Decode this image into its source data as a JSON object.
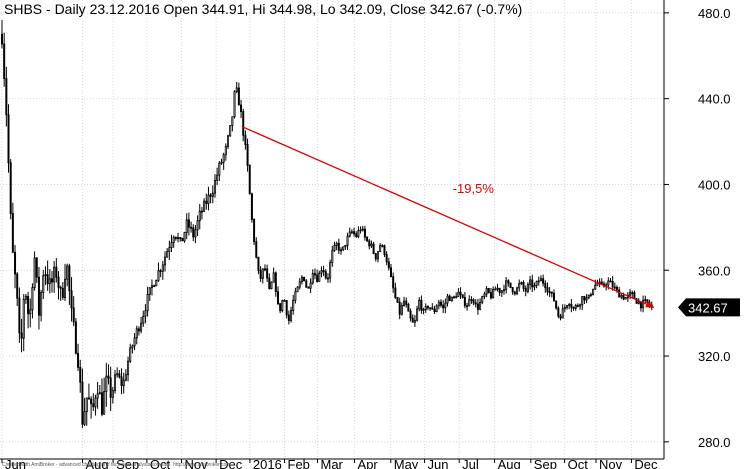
{
  "chart_data": {
    "type": "candlestick",
    "title": "SHBS - Daily 23.12.2016 Open 344.91, Hi 344.98, Lo 342.09, Close 342.67 (-0.7%)",
    "ylim": [
      272,
      486
    ],
    "yticks": [
      280,
      320,
      360,
      400,
      440,
      480
    ],
    "ytick_labels": [
      "280.0",
      "320.0",
      "360.0",
      "400.0",
      "440.0",
      "480.0"
    ],
    "x_range": [
      0,
      82
    ],
    "month_labels": [
      {
        "label": "Jun",
        "x": 0.0
      },
      {
        "label": "Aug",
        "x": 10.0
      },
      {
        "label": "Sep",
        "x": 13.8
      },
      {
        "label": "Oct",
        "x": 18.0
      },
      {
        "label": "Nov",
        "x": 22.3
      },
      {
        "label": "Dec",
        "x": 26.6
      },
      {
        "label": "2016",
        "x": 30.8
      },
      {
        "label": "Feb",
        "x": 35.1
      },
      {
        "label": "Mar",
        "x": 39.2
      },
      {
        "label": "Apr",
        "x": 43.8
      },
      {
        "label": "May",
        "x": 48.3
      },
      {
        "label": "Jun",
        "x": 52.5
      },
      {
        "label": "Jul",
        "x": 56.8
      },
      {
        "label": "Aug",
        "x": 61.2
      },
      {
        "label": "Sep",
        "x": 65.7
      },
      {
        "label": "Oct",
        "x": 69.9
      },
      {
        "label": "Nov",
        "x": 73.8
      },
      {
        "label": "Dec",
        "x": 78.2
      }
    ],
    "price_path": [
      [
        0.0,
        470
      ],
      [
        0.6,
        430
      ],
      [
        1.2,
        372
      ],
      [
        1.8,
        350
      ],
      [
        2.3,
        318
      ],
      [
        2.8,
        355
      ],
      [
        3.4,
        335
      ],
      [
        4.0,
        368
      ],
      [
        4.6,
        340
      ],
      [
        5.2,
        362
      ],
      [
        6.0,
        352
      ],
      [
        6.7,
        360
      ],
      [
        7.4,
        346
      ],
      [
        8.0,
        365
      ],
      [
        8.6,
        340
      ],
      [
        9.0,
        330
      ],
      [
        9.5,
        318
      ],
      [
        10.0,
        290
      ],
      [
        10.6,
        302
      ],
      [
        11.2,
        292
      ],
      [
        11.8,
        308
      ],
      [
        12.4,
        296
      ],
      [
        13.0,
        308
      ],
      [
        13.6,
        302
      ],
      [
        14.2,
        312
      ],
      [
        15.0,
        306
      ],
      [
        15.8,
        320
      ],
      [
        16.6,
        330
      ],
      [
        17.4,
        338
      ],
      [
        18.2,
        348
      ],
      [
        19.0,
        356
      ],
      [
        19.8,
        362
      ],
      [
        20.6,
        370
      ],
      [
        21.4,
        378
      ],
      [
        22.2,
        372
      ],
      [
        23.0,
        382
      ],
      [
        23.8,
        376
      ],
      [
        24.6,
        386
      ],
      [
        25.4,
        392
      ],
      [
        26.2,
        398
      ],
      [
        27.0,
        408
      ],
      [
        27.8,
        416
      ],
      [
        28.5,
        428
      ],
      [
        29.0,
        445
      ],
      [
        29.5,
        438
      ],
      [
        30.0,
        424
      ],
      [
        30.5,
        408
      ],
      [
        31.0,
        385
      ],
      [
        31.5,
        368
      ],
      [
        32.0,
        355
      ],
      [
        32.6,
        362
      ],
      [
        33.2,
        350
      ],
      [
        33.8,
        358
      ],
      [
        34.4,
        340
      ],
      [
        35.0,
        348
      ],
      [
        35.6,
        336
      ],
      [
        36.2,
        346
      ],
      [
        36.8,
        352
      ],
      [
        37.4,
        358
      ],
      [
        38.0,
        350
      ],
      [
        38.6,
        360
      ],
      [
        39.2,
        356
      ],
      [
        39.8,
        362
      ],
      [
        40.4,
        355
      ],
      [
        41.0,
        368
      ],
      [
        41.6,
        372
      ],
      [
        42.2,
        368
      ],
      [
        42.8,
        374
      ],
      [
        43.4,
        378
      ],
      [
        44.0,
        376
      ],
      [
        44.6,
        380
      ],
      [
        45.2,
        374
      ],
      [
        45.8,
        372
      ],
      [
        46.4,
        366
      ],
      [
        47.0,
        372
      ],
      [
        47.6,
        368
      ],
      [
        48.2,
        358
      ],
      [
        48.8,
        348
      ],
      [
        49.4,
        340
      ],
      [
        50.0,
        346
      ],
      [
        50.6,
        338
      ],
      [
        51.2,
        334
      ],
      [
        51.8,
        346
      ],
      [
        52.4,
        340
      ],
      [
        53.0,
        344
      ],
      [
        53.6,
        340
      ],
      [
        54.2,
        346
      ],
      [
        54.8,
        342
      ],
      [
        55.4,
        348
      ],
      [
        56.0,
        346
      ],
      [
        56.6,
        350
      ],
      [
        57.2,
        346
      ],
      [
        57.8,
        344
      ],
      [
        58.4,
        348
      ],
      [
        59.0,
        342
      ],
      [
        59.6,
        346
      ],
      [
        60.2,
        350
      ],
      [
        60.8,
        348
      ],
      [
        61.4,
        352
      ],
      [
        62.0,
        350
      ],
      [
        62.6,
        354
      ],
      [
        63.2,
        352
      ],
      [
        63.8,
        350
      ],
      [
        64.4,
        354
      ],
      [
        65.0,
        350
      ],
      [
        65.6,
        354
      ],
      [
        66.2,
        352
      ],
      [
        66.8,
        356
      ],
      [
        67.4,
        354
      ],
      [
        68.0,
        350
      ],
      [
        68.6,
        346
      ],
      [
        69.2,
        338
      ],
      [
        69.8,
        342
      ],
      [
        70.4,
        346
      ],
      [
        71.0,
        342
      ],
      [
        71.6,
        344
      ],
      [
        72.2,
        348
      ],
      [
        72.8,
        346
      ],
      [
        73.4,
        352
      ],
      [
        74.0,
        354
      ],
      [
        74.6,
        352
      ],
      [
        75.2,
        355
      ],
      [
        75.8,
        353
      ],
      [
        76.4,
        350
      ],
      [
        77.0,
        348
      ],
      [
        77.6,
        347
      ],
      [
        78.2,
        349
      ],
      [
        78.8,
        346
      ],
      [
        79.4,
        344
      ],
      [
        80.0,
        345
      ],
      [
        80.6,
        343.5
      ],
      [
        81.0,
        342.67
      ]
    ],
    "trendline": {
      "x1": 29.8,
      "y1": 427,
      "x2": 81.0,
      "y2": 342.67,
      "color": "#e00000"
    },
    "annotation": {
      "text": "-19,5%",
      "x": 56.0,
      "y": 396,
      "color": "#e00000"
    },
    "last_value": {
      "text": "342.67",
      "value": 342.67
    },
    "credit": "Created with AmiBroker - advanced charting and technical analysis software. http://www.amibroker.com"
  },
  "colors": {
    "up": "#000000",
    "down": "#000000",
    "trend": "#e00000",
    "label_bg": "#000000"
  }
}
